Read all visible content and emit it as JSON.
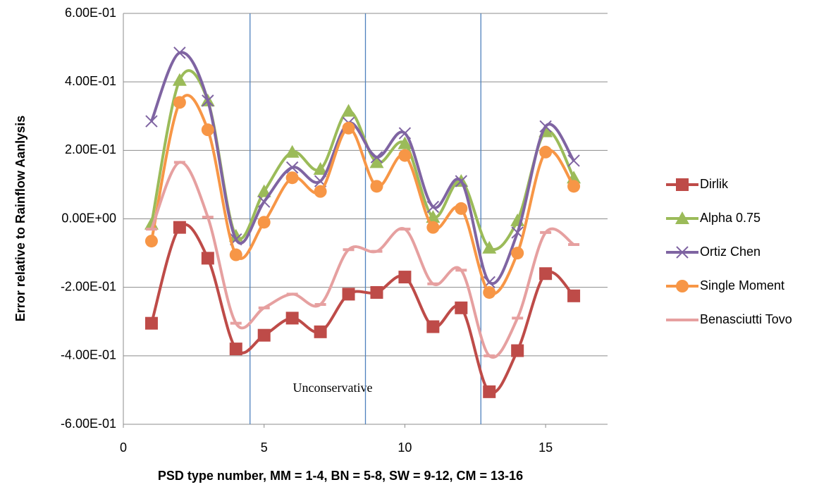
{
  "chart_data": {
    "type": "line",
    "x_label": "PSD type number, MM = 1-4, BN = 5-8, SW = 9-12, CM = 13-16",
    "y_label": "Error relative to Rainflow Aanlysis",
    "annotation": "Unconservative",
    "x": [
      1,
      2,
      3,
      4,
      5,
      6,
      7,
      8,
      9,
      10,
      11,
      12,
      13,
      14,
      15,
      16
    ],
    "xlim": [
      0,
      17.2
    ],
    "xticks": [
      0,
      5,
      10,
      15
    ],
    "ylim": [
      -0.6,
      0.6
    ],
    "yticks": [
      {
        "value": -0.6,
        "label": "-6.00E-01"
      },
      {
        "value": -0.4,
        "label": "-4.00E-01"
      },
      {
        "value": -0.2,
        "label": "-2.00E-01"
      },
      {
        "value": 0,
        "label": "0.00E+00"
      },
      {
        "value": 0.2,
        "label": "2.00E-01"
      },
      {
        "value": 0.4,
        "label": "4.00E-01"
      },
      {
        "value": 0.6,
        "label": "6.00E-01"
      }
    ],
    "grid": true,
    "smooth": true,
    "vlines": [
      4.5,
      8.6,
      12.7
    ],
    "vline_color": "#4f81bd",
    "legend_position": "right",
    "series": [
      {
        "name": "Dirlik",
        "color": "#be4b48",
        "marker": "square",
        "values": [
          -0.305,
          -0.025,
          -0.115,
          -0.38,
          -0.34,
          -0.29,
          -0.33,
          -0.22,
          -0.215,
          -0.17,
          -0.315,
          -0.26,
          -0.505,
          -0.385,
          -0.16,
          -0.225
        ]
      },
      {
        "name": "Alpha 0.75",
        "color": "#9bbb59",
        "marker": "triangle",
        "values": [
          -0.015,
          0.405,
          0.345,
          -0.05,
          0.08,
          0.195,
          0.145,
          0.315,
          0.165,
          0.22,
          0.005,
          0.11,
          -0.085,
          -0.005,
          0.255,
          0.12
        ]
      },
      {
        "name": "Ortiz Chen",
        "color": "#7f64a2",
        "marker": "x",
        "values": [
          0.285,
          0.485,
          0.345,
          -0.06,
          0.05,
          0.15,
          0.11,
          0.28,
          0.18,
          0.25,
          0.035,
          0.11,
          -0.185,
          -0.04,
          0.27,
          0.17
        ]
      },
      {
        "name": "Single Moment",
        "color": "#f79646",
        "marker": "circle",
        "values": [
          -0.065,
          0.34,
          0.26,
          -0.105,
          -0.01,
          0.12,
          0.08,
          0.265,
          0.095,
          0.185,
          -0.025,
          0.03,
          -0.215,
          -0.1,
          0.195,
          0.095
        ]
      },
      {
        "name": "Benasciutti Tovo",
        "color": "#e6a0a0",
        "marker": "dash",
        "values": [
          -0.03,
          0.165,
          0.005,
          -0.305,
          -0.26,
          -0.22,
          -0.25,
          -0.09,
          -0.095,
          -0.03,
          -0.19,
          -0.15,
          -0.4,
          -0.29,
          -0.04,
          -0.075
        ]
      }
    ]
  }
}
